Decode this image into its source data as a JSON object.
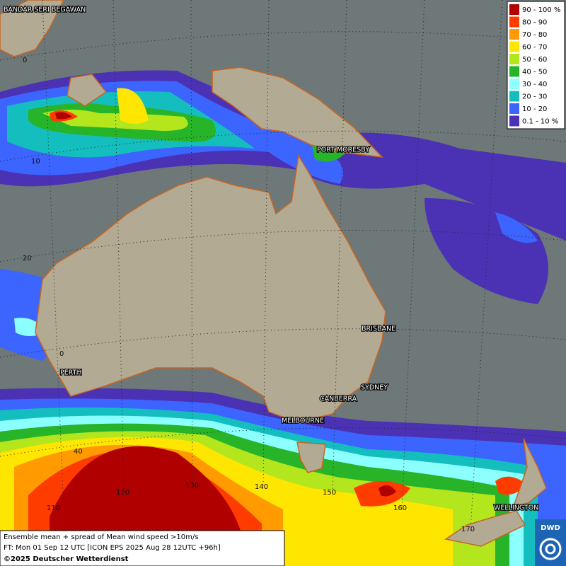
{
  "map": {
    "cities": [
      "BANDAR SERI BEGAWAN",
      "PORT MORESBY",
      "BRISBANE",
      "PERTH",
      "SYDNEY",
      "CANBERRA",
      "MELBOURNE",
      "WELLINGTON"
    ],
    "latitude_labels": [
      0,
      10,
      20,
      0,
      40
    ],
    "longitude_labels": [
      110,
      120,
      130,
      140,
      150,
      160,
      170
    ]
  },
  "legend": {
    "items": [
      {
        "label": "90 - 100 %",
        "color": "#b00000"
      },
      {
        "label": "80 - 90",
        "color": "#ff3c00"
      },
      {
        "label": "70 - 80",
        "color": "#ff9a00"
      },
      {
        "label": "60 - 70",
        "color": "#ffe600"
      },
      {
        "label": "50 - 60",
        "color": "#b4e61e"
      },
      {
        "label": "40 - 50",
        "color": "#28b428"
      },
      {
        "label": "30 - 40",
        "color": "#8cffff"
      },
      {
        "label": "20 - 30",
        "color": "#14bebe"
      },
      {
        "label": "10 - 20",
        "color": "#3c64ff"
      },
      {
        "label": "0.1 - 10 %",
        "color": "#4b32b4"
      }
    ]
  },
  "footer": {
    "line1": "Ensemble mean + spread of Mean wind speed >10m/s",
    "line2": "FT: Mon 01 Sep 12 UTC [ICON EPS 2025 Aug 28 12UTC +96h]",
    "line3": "©2025 Deutscher Wetterdienst"
  },
  "logo": {
    "text": "DWD"
  }
}
